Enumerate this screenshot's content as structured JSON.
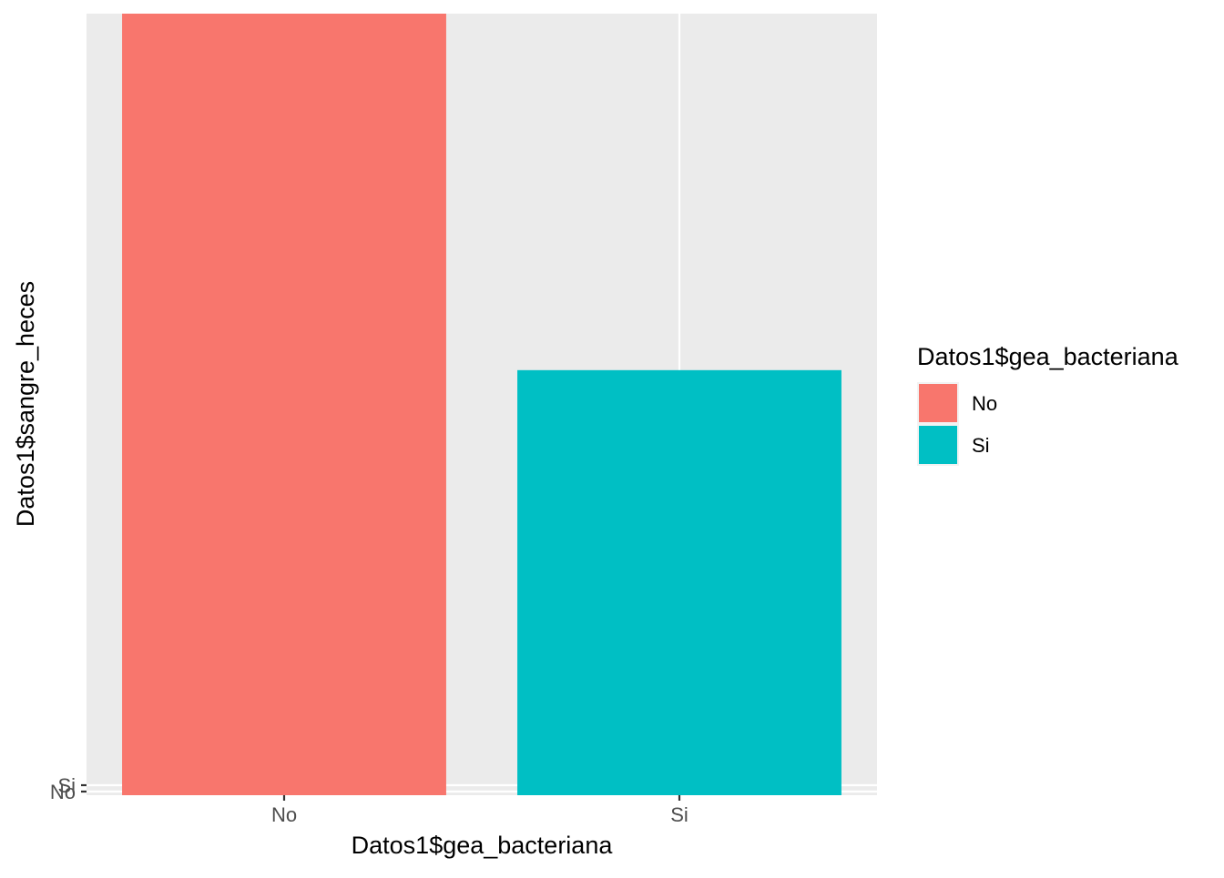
{
  "chart_data": {
    "type": "bar",
    "x": {
      "label": "Datos1$gea_bacteriana",
      "categories": [
        "No",
        "Si"
      ]
    },
    "y": {
      "label": "Datos1$sangre_heces",
      "tick_labels": [
        "No",
        "Si"
      ]
    },
    "values": [
      114,
      62
    ],
    "bar_colors": [
      "#F8766D",
      "#00BFC4"
    ],
    "legend": {
      "title": "Datos1$gea_bacteriana",
      "position": "right",
      "entries": [
        {
          "label": "No",
          "color": "#F8766D"
        },
        {
          "label": "Si",
          "color": "#00BFC4"
        }
      ]
    },
    "panel_background": "#EBEBEB",
    "grid": true
  }
}
